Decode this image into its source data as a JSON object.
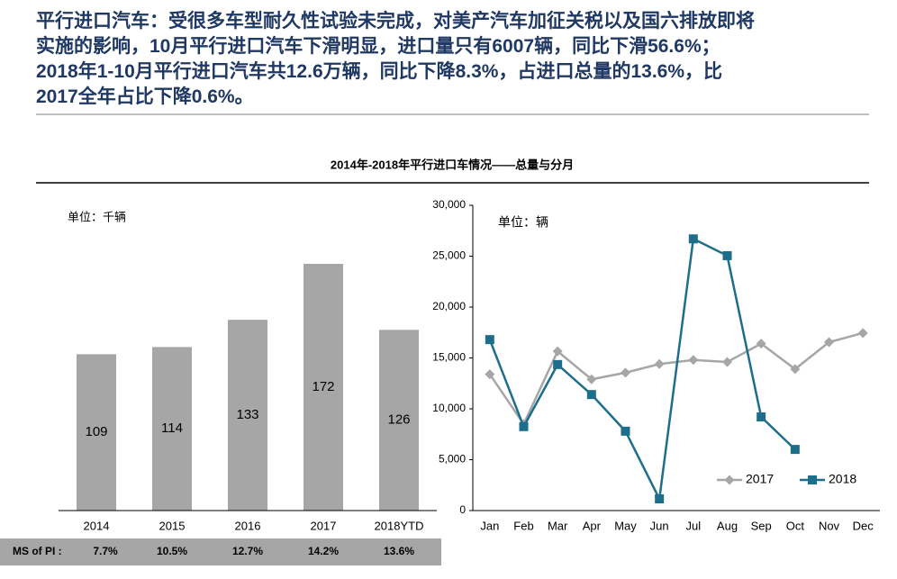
{
  "header": {
    "lines": [
      "平行进口汽车：受很多车型耐久性试验未完成，对美产汽车加征关税以及国六排放即将",
      "实施的影响，10月平行进口汽车下滑明显，进口量只有6007辆，同比下滑56.6%；",
      "2018年1-10月平行进口汽车共12.6万辆，同比下降8.3%，占进口总量的13.6%，比",
      "2017全年占比下降0.6%。"
    ]
  },
  "section_title": "2014年-2018年平行进口车情况——总量与分月",
  "chart_data": [
    {
      "type": "bar",
      "unit": "单位：千辆",
      "categories": [
        "2014",
        "2015",
        "2016",
        "2017",
        "2018YTD"
      ],
      "values": [
        109,
        114,
        133,
        172,
        126
      ],
      "color": "#a6a6a6"
    },
    {
      "type": "line",
      "unit": "单位：辆",
      "categories": [
        "Jan",
        "Feb",
        "Mar",
        "Apr",
        "May",
        "Jun",
        "Jul",
        "Aug",
        "Sep",
        "Oct",
        "Nov",
        "Dec"
      ],
      "series": [
        {
          "name": "2017",
          "color": "#a6a6a6",
          "marker": "diamond",
          "values": [
            13400,
            8500,
            15650,
            12900,
            13550,
            14400,
            14800,
            14600,
            16400,
            13900,
            16550,
            17450
          ]
        },
        {
          "name": "2018",
          "color": "#1c6e8a",
          "marker": "square",
          "values": [
            16800,
            8250,
            14350,
            11400,
            7800,
            1150,
            26700,
            25050,
            9200,
            6007,
            null,
            null
          ]
        }
      ],
      "ylim": [
        0,
        30000
      ],
      "yticks": [
        0,
        {
          "value": 5000,
          "label": "5,000"
        },
        {
          "value": 10000,
          "label": "10,000"
        },
        {
          "value": 15000,
          "label": "15,000"
        },
        {
          "value": 20000,
          "label": "20,000"
        },
        {
          "value": 25000,
          "label": "25,000"
        },
        {
          "value": 30000,
          "label": "30,000"
        }
      ],
      "legend": "lower right"
    }
  ],
  "share_row": {
    "label": "MS of PI :",
    "cells": [
      "7.7%",
      "10.5%",
      "12.7%",
      "14.2%",
      "13.6%"
    ],
    "highlight_color": "#ff0000"
  }
}
